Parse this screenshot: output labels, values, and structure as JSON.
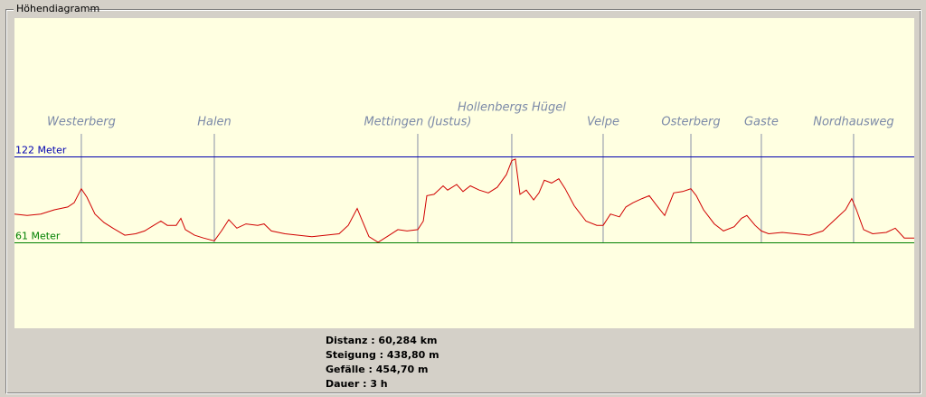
{
  "chart_data": {
    "type": "line",
    "title": "Höhendiagramm",
    "x": [
      0,
      0.85,
      1.76,
      2.67,
      3.57,
      4.0,
      4.48,
      4.85,
      5.39,
      6.0,
      6.6,
      7.39,
      8.12,
      8.72,
      9.33,
      9.81,
      10.24,
      10.84,
      11.15,
      11.45,
      12.06,
      12.66,
      13.39,
      13.87,
      14.36,
      14.9,
      15.51,
      16.3,
      16.72,
      17.21,
      18.12,
      19.02,
      19.93,
      20.84,
      21.75,
      22.36,
      22.96,
      23.27,
      23.75,
      24.36,
      24.96,
      25.69,
      26.3,
      27.02,
      27.39,
      27.63,
      28.11,
      28.72,
      29.02,
      29.63,
      30.05,
      30.54,
      31.14,
      31.75,
      32.35,
      32.96,
      33.32,
      33.56,
      33.87,
      34.29,
      34.78,
      35.14,
      35.5,
      35.99,
      36.47,
      36.9,
      37.5,
      38.29,
      39.02,
      39.44,
      39.93,
      40.53,
      40.96,
      41.44,
      42.05,
      42.53,
      42.96,
      43.56,
      44.17,
      44.77,
      45.32,
      45.68,
      46.17,
      46.89,
      47.5,
      48.22,
      48.71,
      49.07,
      49.62,
      50.04,
      50.53,
      51.44,
      52.35,
      53.26,
      54.16,
      55.07,
      55.68,
      56.1,
      56.41,
      56.89,
      57.5,
      58.41,
      59.01,
      59.62,
      60.284
    ],
    "values": [
      81,
      80,
      81,
      84,
      86,
      89,
      99,
      93,
      81,
      75,
      71,
      66,
      67,
      69,
      73,
      76,
      73,
      73,
      78,
      70,
      66,
      64,
      62,
      69,
      77,
      71,
      74,
      73,
      74,
      69,
      67,
      66,
      65,
      66,
      67,
      73,
      85,
      77,
      65,
      61,
      65,
      70,
      69,
      70,
      76,
      94,
      95,
      101,
      98,
      102,
      97,
      101,
      98,
      96,
      100,
      109,
      119,
      120,
      95,
      98,
      91,
      96,
      105,
      103,
      106,
      99,
      87,
      76,
      73,
      73,
      81,
      79,
      86,
      89,
      92,
      94,
      88,
      80,
      96,
      97,
      99,
      94,
      84,
      74,
      69,
      72,
      78,
      80,
      73,
      69,
      67,
      68,
      67,
      66,
      69,
      78,
      84,
      92,
      84,
      70,
      67,
      68,
      71,
      64,
      64
    ],
    "color": "#d00000",
    "xlim": [
      0,
      60.284
    ],
    "ylim": [
      0,
      220
    ],
    "reference_lines": [
      {
        "value": 122,
        "label": "122 Meter",
        "color": "#0000b0"
      },
      {
        "value": 61,
        "label": "61 Meter",
        "color": "#008000"
      }
    ],
    "waypoints": [
      {
        "label": "Westerberg",
        "x": 4.48
      },
      {
        "label": "Halen",
        "x": 13.39
      },
      {
        "label": "Mettingen (Justus)",
        "x": 27.02
      },
      {
        "label": "Hollenbergs Hügel",
        "x": 33.32
      },
      {
        "label": "Velpe",
        "x": 39.44
      },
      {
        "label": "Osterberg",
        "x": 45.32
      },
      {
        "label": "Gaste",
        "x": 50.04
      },
      {
        "label": "Nordhausweg",
        "x": 56.22
      }
    ],
    "stats": [
      "Distanz : 60,284 km",
      "Steigung : 438,80 m",
      "Gefälle : 454,70 m",
      "Dauer : 3 h"
    ]
  }
}
